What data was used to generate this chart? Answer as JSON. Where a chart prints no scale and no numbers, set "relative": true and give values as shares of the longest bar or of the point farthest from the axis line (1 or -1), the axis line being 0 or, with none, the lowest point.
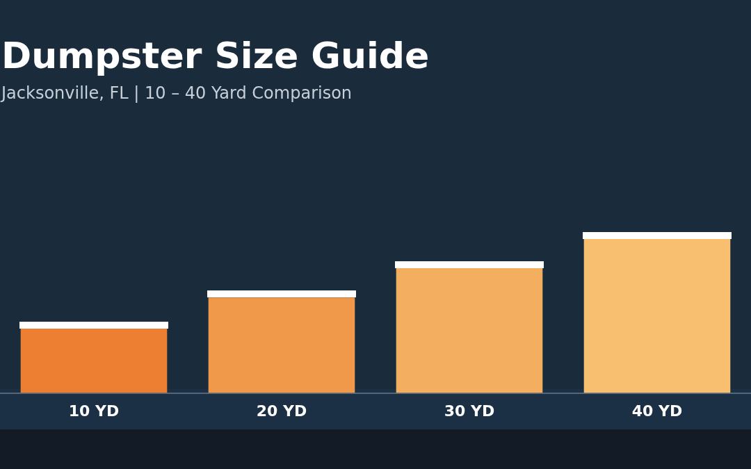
{
  "chart_data": {
    "type": "bar",
    "title": "Dumpster Size Guide",
    "subtitle": "Jacksonville, FL  |  10 – 40 Yard Comparison",
    "categories": [
      "10 YD",
      "20 YD",
      "30 YD",
      "40 YD"
    ],
    "values": [
      0.42,
      0.62,
      0.81,
      1
    ],
    "colors": [
      "#ed7f33",
      "#f0994a",
      "#f4ae5f",
      "#f8bf71"
    ],
    "relative": true,
    "grid": false,
    "legend": false
  }
}
